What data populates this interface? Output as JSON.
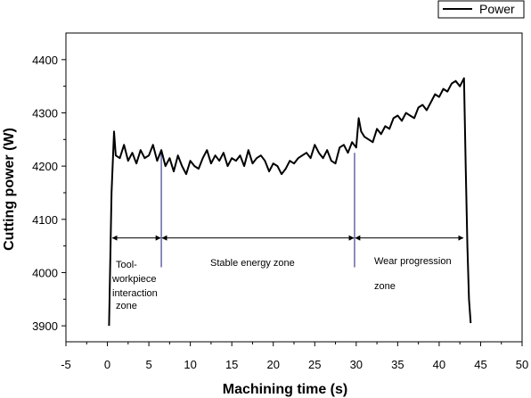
{
  "chart_data": {
    "type": "line",
    "xlabel": "Machining time (s)",
    "ylabel": "Cutting power (W)",
    "xlim": [
      -5,
      50
    ],
    "ylim": [
      3870,
      4450
    ],
    "x_ticks": [
      -5,
      0,
      5,
      10,
      15,
      20,
      25,
      30,
      35,
      40,
      45,
      50
    ],
    "y_ticks": [
      3900,
      4000,
      4100,
      4200,
      4300,
      4400
    ],
    "grid": false,
    "legend_position": "top-right",
    "series": [
      {
        "name": "Power",
        "color": "#000000",
        "x": [
          0.2,
          0.5,
          0.8,
          1,
          1.5,
          2,
          2.5,
          3,
          3.5,
          4,
          4.5,
          5,
          5.5,
          6,
          6.5,
          7,
          7.5,
          8,
          8.5,
          9,
          9.5,
          10,
          10.5,
          11,
          11.5,
          12,
          12.5,
          13,
          13.5,
          14,
          14.5,
          15,
          15.5,
          16,
          16.5,
          17,
          17.5,
          18,
          18.5,
          19,
          19.5,
          20,
          20.5,
          21,
          21.5,
          22,
          22.5,
          23,
          23.5,
          24,
          24.5,
          25,
          25.5,
          26,
          26.5,
          27,
          27.5,
          28,
          28.5,
          29,
          29.5,
          30,
          30.3,
          30.6,
          31,
          31.5,
          32,
          32.5,
          33,
          33.5,
          34,
          34.5,
          35,
          35.5,
          36,
          36.5,
          37,
          37.5,
          38,
          38.5,
          39,
          39.5,
          40,
          40.5,
          41,
          41.5,
          42,
          42.5,
          43,
          43.2,
          43.4,
          43.6,
          43.8
        ],
        "y": [
          3900,
          4150,
          4265,
          4220,
          4215,
          4240,
          4210,
          4225,
          4205,
          4230,
          4215,
          4220,
          4240,
          4210,
          4230,
          4200,
          4215,
          4190,
          4220,
          4200,
          4185,
          4210,
          4200,
          4195,
          4215,
          4230,
          4205,
          4220,
          4210,
          4225,
          4200,
          4215,
          4210,
          4220,
          4200,
          4230,
          4205,
          4215,
          4220,
          4210,
          4190,
          4205,
          4200,
          4185,
          4195,
          4210,
          4205,
          4215,
          4220,
          4225,
          4215,
          4240,
          4225,
          4215,
          4230,
          4210,
          4205,
          4235,
          4240,
          4225,
          4245,
          4235,
          4290,
          4265,
          4255,
          4250,
          4245,
          4270,
          4260,
          4275,
          4270,
          4290,
          4295,
          4285,
          4300,
          4295,
          4290,
          4310,
          4315,
          4305,
          4320,
          4335,
          4330,
          4345,
          4340,
          4355,
          4360,
          4350,
          4365,
          4200,
          4050,
          3950,
          3905
        ]
      }
    ],
    "annotations": {
      "zone1": [
        "Tool-",
        "workpiece",
        "interaction",
        "zone"
      ],
      "zone2": "Stable energy zone",
      "zone3_line1": "Wear progression",
      "zone3_line2": "zone"
    },
    "zone_boundaries_x": [
      0.5,
      6.5,
      29.8,
      43.0
    ],
    "zone_arrow_y": 4065,
    "zone_line_color": "#1a1a7a"
  }
}
